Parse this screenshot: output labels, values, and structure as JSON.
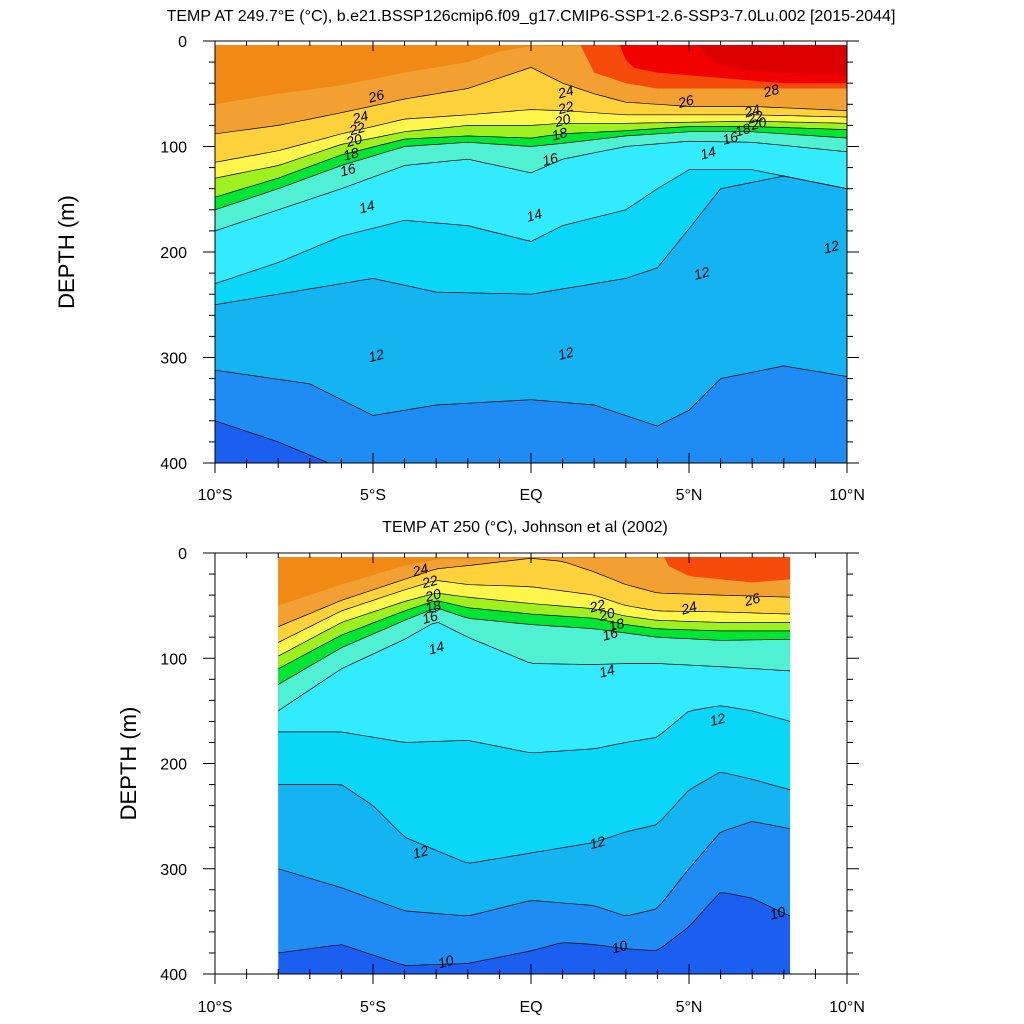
{
  "colors": {
    "levels_10": "#1a5ff0",
    "levels_11": "#1e8cf2",
    "levels_12": "#14b4f2",
    "levels_13": "#0ad6f7",
    "levels_14": "#32ebff",
    "levels_16": "#50f0d2",
    "levels_18": "#00e632",
    "levels_20": "#9ef01e",
    "levels_22": "#fff54b",
    "levels_24": "#ffd23c",
    "levels_26": "#f2a032",
    "levels_27": "#f08a14",
    "levels_28": "#f54a0a",
    "levels_29": "#f20000",
    "levels_30": "#dc0000",
    "missing": "#ffffff"
  },
  "chart_data": [
    {
      "type": "heatmap",
      "title": "TEMP AT 249.7°E (°C), b.e21.BSSP126cmip6.f09_g17.CMIP6-SSP1-2.6-SSP3-7.0Lu.002 [2015-2044]",
      "xlabel": "",
      "ylabel": "DEPTH (m)",
      "x_ticks": [
        "10°S",
        "5°S",
        "EQ",
        "5°N",
        "10°N"
      ],
      "x_tick_values": [
        -10,
        -5,
        0,
        5,
        10
      ],
      "y_ticks": [
        "0",
        "100",
        "200",
        "300",
        "400"
      ],
      "y_tick_values": [
        0,
        100,
        200,
        300,
        400
      ],
      "xlim": [
        -10,
        10
      ],
      "ylim": [
        0,
        400
      ],
      "data_xlim": [
        -10,
        10
      ],
      "contour_levels": [
        10,
        11,
        12,
        13,
        14,
        15,
        16,
        17,
        18,
        19,
        20,
        21,
        22,
        23,
        24,
        25,
        26,
        27,
        28,
        29
      ],
      "contour_labels": [
        {
          "text": "26",
          "x": -4.9,
          "y": 52
        },
        {
          "text": "24",
          "x": -5.4,
          "y": 72
        },
        {
          "text": "22",
          "x": -5.5,
          "y": 83
        },
        {
          "text": "20",
          "x": -5.6,
          "y": 94
        },
        {
          "text": "18",
          "x": -5.7,
          "y": 107
        },
        {
          "text": "16",
          "x": -5.8,
          "y": 122
        },
        {
          "text": "14",
          "x": -5.2,
          "y": 157
        },
        {
          "text": "24",
          "x": 1.1,
          "y": 48
        },
        {
          "text": "22",
          "x": 1.1,
          "y": 63
        },
        {
          "text": "20",
          "x": 1.0,
          "y": 75
        },
        {
          "text": "18",
          "x": 0.9,
          "y": 88
        },
        {
          "text": "16",
          "x": 0.6,
          "y": 112
        },
        {
          "text": "14",
          "x": 0.1,
          "y": 165
        },
        {
          "text": "26",
          "x": 4.9,
          "y": 57
        },
        {
          "text": "28",
          "x": 7.6,
          "y": 47
        },
        {
          "text": "24",
          "x": 7.0,
          "y": 66
        },
        {
          "text": "22",
          "x": 7.1,
          "y": 72
        },
        {
          "text": "20",
          "x": 7.2,
          "y": 78
        },
        {
          "text": "18",
          "x": 6.7,
          "y": 84
        },
        {
          "text": "16",
          "x": 6.3,
          "y": 92
        },
        {
          "text": "14",
          "x": 5.6,
          "y": 106
        },
        {
          "text": "12",
          "x": 5.4,
          "y": 220
        },
        {
          "text": "12",
          "x": 9.5,
          "y": 195
        },
        {
          "text": "12",
          "x": -4.9,
          "y": 298
        },
        {
          "text": "12",
          "x": 1.1,
          "y": 296
        }
      ],
      "grid": false,
      "legend": "none"
    },
    {
      "type": "heatmap",
      "title": "TEMP AT 250 (°C), Johnson et al (2002)",
      "xlabel": "",
      "ylabel": "DEPTH (m)",
      "x_ticks": [
        "10°S",
        "5°S",
        "EQ",
        "5°N",
        "10°N"
      ],
      "x_tick_values": [
        -10,
        -5,
        0,
        5,
        10
      ],
      "y_ticks": [
        "0",
        "100",
        "200",
        "300",
        "400"
      ],
      "y_tick_values": [
        0,
        100,
        200,
        300,
        400
      ],
      "xlim": [
        -10,
        10
      ],
      "ylim": [
        0,
        400
      ],
      "data_xlim": [
        -8,
        8.2
      ],
      "contour_levels": [
        10,
        11,
        12,
        13,
        14,
        15,
        16,
        17,
        18,
        19,
        20,
        21,
        22,
        23,
        24,
        25,
        26,
        27,
        28
      ],
      "contour_labels": [
        {
          "text": "24",
          "x": -3.5,
          "y": 16
        },
        {
          "text": "22",
          "x": -3.2,
          "y": 27
        },
        {
          "text": "20",
          "x": -3.1,
          "y": 40
        },
        {
          "text": "18",
          "x": -3.1,
          "y": 51
        },
        {
          "text": "16",
          "x": -3.2,
          "y": 61
        },
        {
          "text": "14",
          "x": -3.0,
          "y": 90
        },
        {
          "text": "22",
          "x": 2.1,
          "y": 50
        },
        {
          "text": "20",
          "x": 2.4,
          "y": 58
        },
        {
          "text": "18",
          "x": 2.7,
          "y": 68
        },
        {
          "text": "16",
          "x": 2.5,
          "y": 77
        },
        {
          "text": "14",
          "x": 2.4,
          "y": 112
        },
        {
          "text": "24",
          "x": 5.0,
          "y": 52
        },
        {
          "text": "26",
          "x": 7.0,
          "y": 44
        },
        {
          "text": "12",
          "x": 5.9,
          "y": 158
        },
        {
          "text": "12",
          "x": -3.5,
          "y": 284
        },
        {
          "text": "12",
          "x": 2.1,
          "y": 275
        },
        {
          "text": "10",
          "x": -2.7,
          "y": 388
        },
        {
          "text": "10",
          "x": 2.8,
          "y": 374
        },
        {
          "text": "10",
          "x": 7.8,
          "y": 342
        }
      ],
      "grid": false,
      "legend": "none"
    }
  ]
}
